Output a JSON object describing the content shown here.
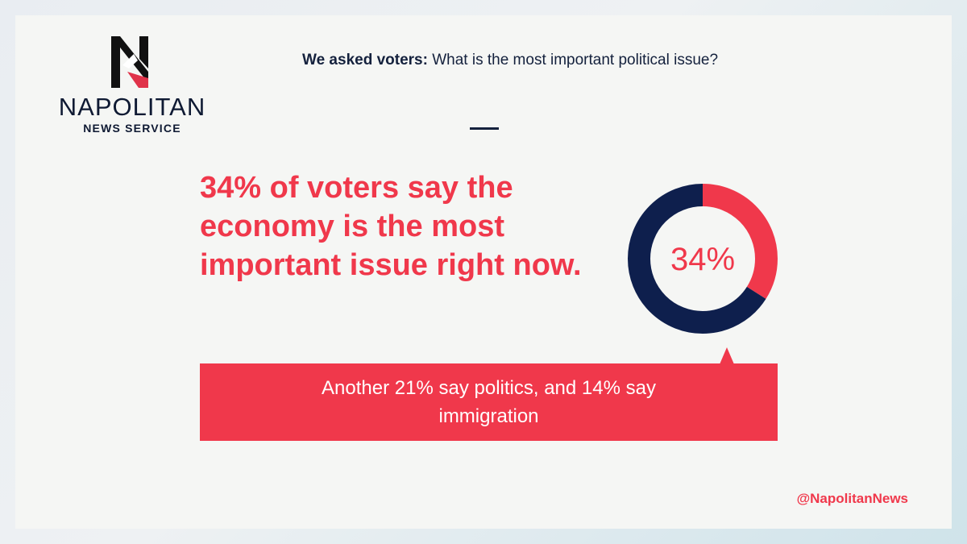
{
  "brand": {
    "name": "NAPOLITAN",
    "sub": "NEWS SERVICE",
    "colors": {
      "red": "#f0384b",
      "navy": "#0e1f4d",
      "ink": "#14213d"
    }
  },
  "question": {
    "lead": "We asked voters:",
    "text": " What is the most important political issue?"
  },
  "headline": "34% of voters say the economy is the most important issue right now.",
  "callout": "Another 21% say politics, and 14% say immigration",
  "handle": "@NapolitanNews",
  "chart_data": {
    "type": "pie",
    "variant": "donut",
    "center_label": "34%",
    "slices": [
      {
        "label": "",
        "value": 34,
        "color": "#f0384b"
      },
      {
        "label": "",
        "value": 66,
        "color": "#0e1f4d"
      }
    ]
  }
}
